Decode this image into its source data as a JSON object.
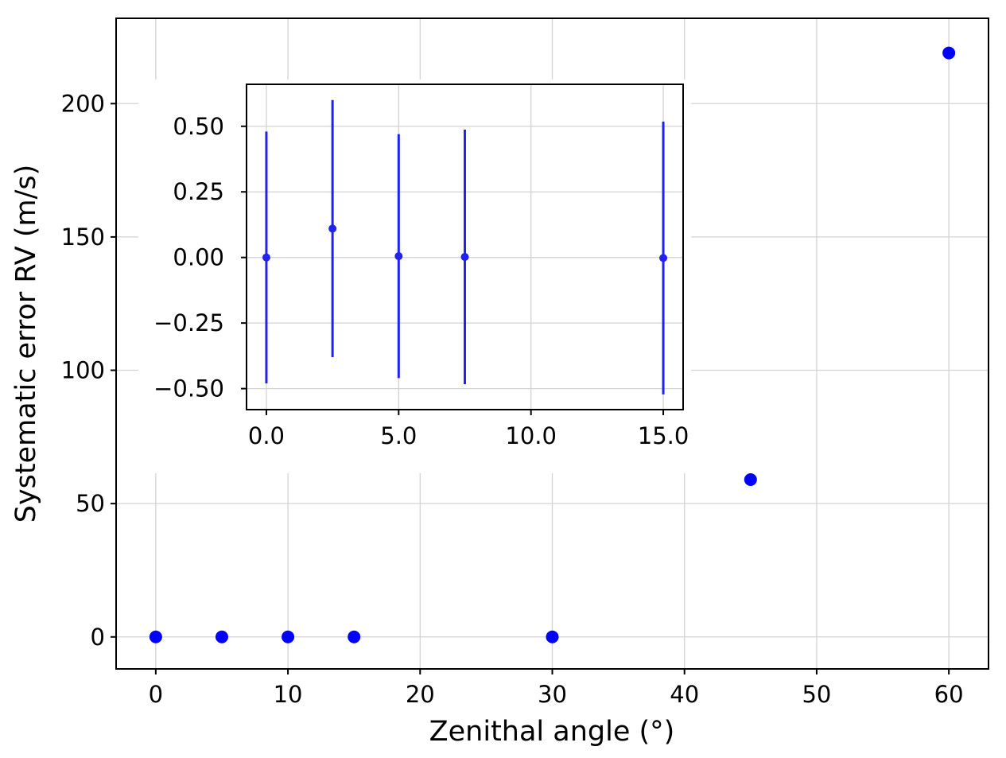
{
  "chart_data": [
    {
      "type": "scatter",
      "xlabel": "Zenithal angle (°)",
      "ylabel": "Systematic error RV (m/s)",
      "xlim": [
        -3,
        63
      ],
      "ylim": [
        -12,
        232
      ],
      "xticks": [
        0,
        10,
        20,
        30,
        40,
        50,
        60
      ],
      "yticks": [
        0,
        50,
        100,
        150,
        200
      ],
      "grid": true,
      "color": "#0000ff",
      "series": [
        {
          "x": [
            0,
            5,
            10,
            15,
            30,
            45,
            60
          ],
          "y": [
            0,
            0,
            0,
            0,
            0,
            59,
            219
          ]
        }
      ]
    },
    {
      "type": "scatter",
      "placement": "inset, upper-left",
      "xlim": [
        -0.75,
        15.75
      ],
      "ylim": [
        -0.58,
        0.66
      ],
      "xticks": [
        0.0,
        5.0,
        10.0,
        15.0
      ],
      "xtick_labels": [
        "0.0",
        "5.0",
        "10.0",
        "15.0"
      ],
      "yticks": [
        -0.5,
        -0.25,
        0.0,
        0.25,
        0.5
      ],
      "ytick_labels": [
        "−0.50",
        "−0.25",
        "0.00",
        "0.25",
        "0.50"
      ],
      "grid": true,
      "color": "#2222ee",
      "series": [
        {
          "x": [
            0.0,
            2.5,
            5.0,
            7.5,
            15.0
          ],
          "y": [
            0.0,
            0.11,
            0.005,
            0.002,
            -0.002
          ],
          "yerr": [
            0.48,
            0.49,
            0.465,
            0.485,
            0.52
          ]
        }
      ]
    }
  ]
}
